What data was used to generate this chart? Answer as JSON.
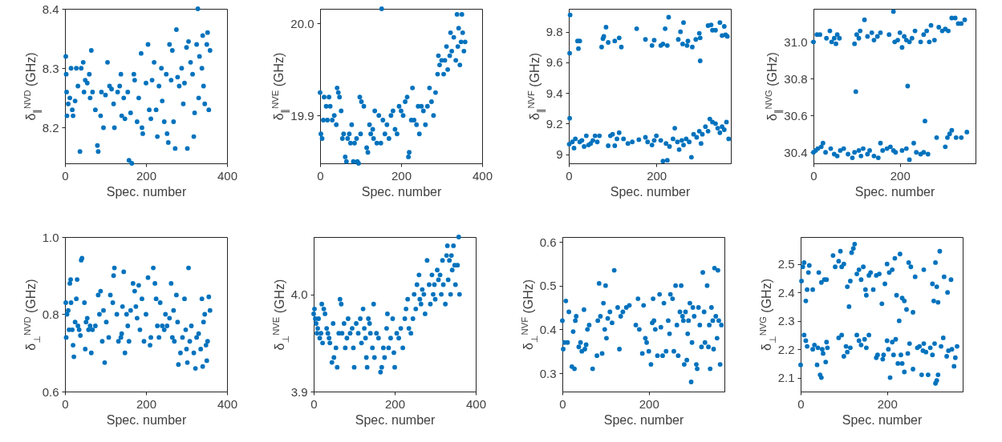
{
  "chart_data": [
    {
      "type": "scatter",
      "xlabel": "Spec. number",
      "ylabel": "δ$_{∥}$$^{NVD}$ (GHz)",
      "color": "#0072bd",
      "marker": "circle",
      "xlim": [
        0,
        400
      ],
      "xticks": [
        0,
        200,
        400
      ],
      "ylim": [
        8.14,
        8.4
      ],
      "yticks": [
        8.2,
        8.3,
        8.4
      ],
      "x": [
        2,
        3,
        4,
        5,
        8,
        12,
        15,
        18,
        20,
        25,
        28,
        32,
        37,
        40,
        45,
        47,
        50,
        55,
        60,
        62,
        65,
        68,
        75,
        80,
        82,
        88,
        90,
        95,
        100,
        105,
        110,
        115,
        120,
        122,
        130,
        135,
        138,
        140,
        145,
        148,
        155,
        158,
        162,
        165,
        170,
        172,
        178,
        182,
        188,
        190,
        192,
        200,
        205,
        208,
        212,
        215,
        220,
        225,
        228,
        232,
        238,
        240,
        245,
        250,
        252,
        255,
        258,
        262,
        265,
        268,
        272,
        275,
        278,
        282,
        288,
        292,
        295,
        300,
        302,
        305,
        310,
        315,
        318,
        320,
        325,
        328,
        330,
        332,
        338,
        340,
        342,
        345,
        350,
        352,
        355,
        358
      ],
      "values": [
        8.32,
        8.29,
        8.26,
        8.22,
        8.24,
        8.25,
        8.3,
        8.23,
        8.22,
        8.245,
        8.3,
        8.27,
        8.16,
        8.3,
        8.31,
        8.26,
        8.28,
        8.275,
        8.29,
        8.25,
        8.33,
        8.26,
        8.23,
        8.17,
        8.16,
        8.22,
        8.26,
        8.2,
        8.255,
        8.31,
        8.27,
        8.265,
        8.24,
        8.2,
        8.26,
        8.27,
        8.29,
        8.22,
        8.25,
        8.215,
        8.26,
        8.145,
        8.225,
        8.14,
        8.29,
        8.28,
        8.21,
        8.25,
        8.325,
        8.2,
        8.19,
        8.275,
        8.34,
        8.23,
        8.215,
        8.28,
        8.31,
        8.23,
        8.185,
        8.27,
        8.3,
        8.245,
        8.21,
        8.29,
        8.19,
        8.175,
        8.34,
        8.28,
        8.33,
        8.21,
        8.165,
        8.365,
        8.285,
        8.27,
        8.3,
        8.24,
        8.275,
        8.335,
        8.165,
        8.345,
        8.31,
        8.29,
        8.185,
        8.225,
        8.34,
        8.4,
        8.25,
        8.32,
        8.3,
        8.355,
        8.27,
        8.24,
        8.34,
        8.36,
        8.23,
        8.33
      ]
    },
    {
      "type": "scatter",
      "xlabel": "Spec. number",
      "ylabel": "δ$_{∥}$$^{NVE}$ (GHz)",
      "color": "#0072bd",
      "marker": "circle",
      "xlim": [
        0,
        400
      ],
      "xticks": [
        0,
        200,
        400
      ],
      "ylim": [
        19.848,
        20.016
      ],
      "yticks": [
        19.9,
        {
          "value": 20,
          "label": "20.0"
        }
      ],
      "x": [
        0,
        2,
        5,
        8,
        10,
        15,
        18,
        22,
        25,
        30,
        35,
        40,
        42,
        45,
        48,
        52,
        55,
        58,
        62,
        65,
        68,
        72,
        75,
        78,
        82,
        85,
        90,
        92,
        95,
        98,
        100,
        102,
        108,
        115,
        118,
        122,
        125,
        130,
        132,
        135,
        140,
        145,
        150,
        152,
        155,
        160,
        165,
        170,
        175,
        180,
        185,
        190,
        195,
        200,
        205,
        210,
        215,
        218,
        220,
        225,
        228,
        232,
        238,
        242,
        245,
        250,
        255,
        260,
        265,
        270,
        275,
        280,
        285,
        290,
        292,
        295,
        300,
        305,
        308,
        312,
        315,
        320,
        322,
        325,
        330,
        335,
        338,
        340,
        342,
        345,
        348,
        350,
        352,
        355,
        358
      ],
      "values": [
        19.925,
        19.88,
        19.875,
        19.895,
        19.92,
        19.91,
        19.895,
        19.92,
        19.91,
        19.895,
        19.9,
        19.89,
        19.93,
        19.925,
        19.92,
        19.905,
        19.875,
        19.88,
        19.855,
        19.85,
        19.875,
        19.88,
        19.87,
        19.89,
        19.85,
        19.87,
        19.875,
        19.85,
        19.848,
        19.92,
        19.88,
        19.915,
        19.91,
        19.865,
        19.86,
        19.89,
        19.88,
        19.885,
        19.875,
        19.905,
        19.87,
        19.9,
        19.87,
        20.016,
        19.895,
        19.88,
        19.89,
        19.875,
        19.9,
        19.905,
        19.885,
        19.88,
        19.91,
        19.905,
        19.9,
        19.915,
        19.92,
        19.855,
        19.86,
        19.895,
        19.93,
        19.895,
        19.89,
        19.91,
        19.88,
        19.91,
        19.905,
        19.89,
        19.91,
        19.93,
        19.915,
        19.9,
        19.925,
        19.945,
        19.965,
        19.955,
        19.96,
        19.945,
        19.96,
        19.975,
        19.95,
        19.965,
        19.99,
        19.97,
        19.985,
        19.96,
        20.01,
        19.975,
        19.995,
        19.955,
        19.98,
        20.01,
        19.99,
        19.97,
        19.98
      ]
    },
    {
      "type": "scatter",
      "xlabel": "Spec. number",
      "ylabel": "δ$_{∥}$$^{NVF}$ (GHz)",
      "color": "#0072bd",
      "marker": "circle",
      "xlim": [
        0,
        370
      ],
      "xticks": [
        0,
        200
      ],
      "ylim": [
        8.94,
        9.95
      ],
      "yticks": [
        9,
        9.2,
        9.4,
        9.6,
        9.8
      ],
      "x": [
        3,
        2,
        20,
        22,
        25,
        75,
        78,
        80,
        85,
        90,
        105,
        115,
        120,
        155,
        175,
        190,
        195,
        210,
        215,
        220,
        225,
        228,
        250,
        255,
        260,
        262,
        270,
        272,
        282,
        290,
        298,
        300,
        300,
        318,
        325,
        328,
        335,
        345,
        350,
        355,
        358,
        362,
        1,
        2,
        8,
        12,
        15,
        25,
        30,
        35,
        40,
        45,
        50,
        55,
        60,
        65,
        70,
        90,
        95,
        100,
        105,
        110,
        115,
        125,
        135,
        145,
        160,
        175,
        180,
        190,
        195,
        200,
        210,
        215,
        222,
        225,
        230,
        238,
        242,
        248,
        252,
        258,
        262,
        268,
        275,
        280,
        285,
        292,
        298,
        302,
        305,
        312,
        318,
        322,
        328,
        335,
        340,
        345,
        350,
        355,
        360,
        365
      ],
      "values": [
        9.91,
        9.66,
        9.74,
        9.69,
        9.74,
        9.7,
        9.755,
        9.77,
        9.83,
        9.73,
        9.74,
        9.76,
        9.7,
        9.82,
        9.75,
        9.71,
        9.745,
        9.71,
        9.72,
        9.82,
        9.71,
        9.895,
        9.75,
        9.8,
        9.72,
        9.86,
        9.71,
        9.74,
        9.7,
        9.75,
        9.79,
        9.61,
        9.76,
        9.84,
        9.845,
        9.81,
        9.81,
        9.86,
        9.775,
        9.835,
        9.78,
        9.77,
        9.065,
        9.235,
        9.08,
        9.04,
        9.1,
        9.08,
        9.09,
        9.05,
        9.12,
        9.06,
        9.07,
        9.09,
        9.12,
        9.08,
        9.12,
        9.055,
        9.12,
        9.13,
        9.055,
        9.1,
        9.14,
        9.1,
        9.07,
        9.08,
        9.095,
        9.11,
        9.08,
        9.06,
        9.09,
        9.12,
        9.09,
        8.955,
        9.07,
        8.96,
        9.05,
        9.1,
        9.17,
        9.08,
        9.03,
        9.09,
        9.06,
        9.1,
        9.08,
        8.98,
        9.13,
        9.11,
        9.15,
        9.07,
        9.13,
        9.18,
        9.15,
        9.23,
        9.21,
        9.2,
        9.17,
        9.14,
        9.18,
        9.16,
        9.21,
        9.1
      ]
    },
    {
      "type": "scatter",
      "xlabel": "Spec. number",
      "ylabel": "δ$_{∥}$$^{NVG}$ (GHz)",
      "color": "#0072bd",
      "marker": "circle",
      "xlim": [
        0,
        375
      ],
      "xticks": [
        0,
        200
      ],
      "ylim": [
        30.34,
        31.18
      ],
      "yticks": [
        30.4,
        30.6,
        30.8,
        {
          "value": 31,
          "label": "31.0"
        }
      ],
      "x": [
        0,
        8,
        15,
        30,
        38,
        42,
        48,
        52,
        55,
        60,
        95,
        100,
        105,
        108,
        118,
        125,
        135,
        140,
        148,
        155,
        175,
        185,
        188,
        195,
        200,
        205,
        210,
        215,
        222,
        228,
        235,
        248,
        255,
        262,
        268,
        272,
        280,
        290,
        298,
        305,
        312,
        320,
        328,
        335,
        342,
        350,
        98,
        218,
        258,
        0,
        5,
        10,
        18,
        22,
        28,
        40,
        48,
        55,
        62,
        70,
        80,
        90,
        95,
        105,
        110,
        115,
        125,
        130,
        140,
        150,
        155,
        160,
        170,
        178,
        185,
        190,
        205,
        215,
        222,
        232,
        238,
        248,
        255,
        265,
        285,
        305,
        310,
        315,
        320,
        330,
        342,
        355
      ],
      "values": [
        31.0,
        31.04,
        31.04,
        31.02,
        31.06,
        31.0,
        31.02,
        30.99,
        31.04,
        31.02,
        30.99,
        31.04,
        31.02,
        31.06,
        31.12,
        31.03,
        31.05,
        31.01,
        31.03,
        31.05,
        31.04,
        31.165,
        31.0,
        31.01,
        31.05,
        30.97,
        31.03,
        31.01,
        31.0,
        31.02,
        31.06,
        31.0,
        31.04,
        31.06,
        31.0,
        31.09,
        31.01,
        31.08,
        31.06,
        31.07,
        31.06,
        31.13,
        31.13,
        31.1,
        31.1,
        31.12,
        30.73,
        30.76,
        30.57,
        30.4,
        30.41,
        30.42,
        30.43,
        30.45,
        30.4,
        30.42,
        30.39,
        30.38,
        30.41,
        30.42,
        30.39,
        30.37,
        30.4,
        30.41,
        30.38,
        30.42,
        30.39,
        30.41,
        30.38,
        30.37,
        30.45,
        30.41,
        30.42,
        30.43,
        30.41,
        30.4,
        30.41,
        30.42,
        30.36,
        30.45,
        30.4,
        30.39,
        30.4,
        30.39,
        30.48,
        30.43,
        30.48,
        30.5,
        30.52,
        30.48,
        30.48,
        30.51
      ]
    },
    {
      "type": "scatter",
      "xlabel": "Spec. number",
      "ylabel": "δ$_{⊥}$$^{NVD}$ (GHz)",
      "color": "#0072bd",
      "marker": "circle",
      "xlim": [
        0,
        400
      ],
      "xticks": [
        0,
        200,
        400
      ],
      "ylim": [
        0.6,
        1.0
      ],
      "yticks": [
        0.6,
        0.8,
        {
          "value": 1,
          "label": "1.0"
        }
      ],
      "x": [
        2,
        3,
        5,
        8,
        10,
        12,
        14,
        15,
        18,
        20,
        22,
        25,
        28,
        30,
        32,
        35,
        38,
        40,
        42,
        48,
        50,
        52,
        55,
        58,
        62,
        65,
        68,
        75,
        82,
        85,
        88,
        92,
        95,
        98,
        102,
        108,
        112,
        118,
        120,
        122,
        128,
        132,
        138,
        140,
        142,
        145,
        148,
        152,
        155,
        158,
        162,
        168,
        172,
        175,
        178,
        182,
        185,
        190,
        195,
        200,
        205,
        210,
        212,
        218,
        222,
        225,
        228,
        232,
        235,
        240,
        245,
        248,
        252,
        258,
        262,
        265,
        268,
        270,
        275,
        278,
        280,
        285,
        290,
        295,
        298,
        300,
        302,
        305,
        308,
        312,
        318,
        322,
        325,
        330,
        335,
        338,
        340,
        342,
        345,
        348,
        350,
        352,
        355,
        358
      ],
      "values": [
        0.83,
        0.74,
        0.8,
        0.81,
        0.76,
        0.88,
        0.89,
        0.83,
        0.76,
        0.72,
        0.69,
        0.78,
        0.84,
        0.89,
        0.77,
        0.76,
        0.745,
        0.94,
        0.945,
        0.83,
        0.71,
        0.78,
        0.79,
        0.76,
        0.77,
        0.7,
        0.76,
        0.77,
        0.85,
        0.8,
        0.86,
        0.73,
        0.81,
        0.675,
        0.78,
        0.74,
        0.85,
        0.83,
        0.9,
        0.92,
        0.8,
        0.73,
        0.74,
        0.75,
        0.82,
        0.91,
        0.7,
        0.8,
        0.77,
        0.73,
        0.81,
        0.88,
        0.86,
        0.82,
        0.79,
        0.875,
        0.76,
        0.84,
        0.73,
        0.8,
        0.895,
        0.72,
        0.74,
        0.92,
        0.88,
        0.84,
        0.77,
        0.74,
        0.83,
        0.77,
        0.76,
        0.8,
        0.77,
        0.79,
        0.88,
        0.74,
        0.81,
        0.73,
        0.85,
        0.78,
        0.67,
        0.7,
        0.74,
        0.84,
        0.76,
        0.71,
        0.675,
        0.92,
        0.73,
        0.77,
        0.7,
        0.66,
        0.74,
        0.75,
        0.71,
        0.84,
        0.665,
        0.78,
        0.8,
        0.72,
        0.68,
        0.73,
        0.845,
        0.81
      ]
    },
    {
      "type": "scatter",
      "xlabel": "Spec. number",
      "ylabel": "δ$_{⊥}$$^{NVE}$ (GHz)",
      "color": "#0072bd",
      "marker": "circle",
      "xlim": [
        0,
        400
      ],
      "xticks": [
        0,
        200,
        400
      ],
      "ylim": [
        3.9,
        4.059
      ],
      "yticks": [
        3.9,
        {
          "value": 4,
          "label": "4.0"
        }
      ],
      "x": [
        0,
        2,
        4,
        6,
        8,
        10,
        12,
        15,
        18,
        20,
        22,
        25,
        28,
        32,
        35,
        38,
        40,
        45,
        48,
        50,
        55,
        58,
        62,
        65,
        68,
        70,
        75,
        78,
        82,
        85,
        90,
        95,
        98,
        100,
        105,
        110,
        115,
        118,
        122,
        125,
        128,
        130,
        132,
        135,
        138,
        140,
        145,
        148,
        150,
        155,
        160,
        165,
        168,
        172,
        175,
        180,
        182,
        185,
        190,
        195,
        198,
        200,
        205,
        210,
        215,
        220,
        225,
        228,
        232,
        235,
        240,
        245,
        248,
        252,
        255,
        260,
        262,
        265,
        268,
        272,
        275,
        280,
        285,
        288,
        292,
        295,
        298,
        300,
        305,
        308,
        312,
        315,
        318,
        320,
        325,
        328,
        330,
        332,
        335,
        338,
        340,
        342,
        345,
        348,
        350,
        355,
        358,
        360
      ],
      "values": [
        3.98,
        3.985,
        3.975,
        3.97,
        3.96,
        3.965,
        3.975,
        3.955,
        3.96,
        3.99,
        3.95,
        3.985,
        3.98,
        3.965,
        3.96,
        3.955,
        3.95,
        3.93,
        3.97,
        3.935,
        3.945,
        3.925,
        3.96,
        3.995,
        3.99,
        3.96,
        3.97,
        3.945,
        3.955,
        3.975,
        3.96,
        3.965,
        3.945,
        3.925,
        3.97,
        3.96,
        3.975,
        3.95,
        3.985,
        3.965,
        3.955,
        3.935,
        3.925,
        3.975,
        3.97,
        3.96,
        3.945,
        3.99,
        3.935,
        3.96,
        3.955,
        3.92,
        3.925,
        3.945,
        3.935,
        3.965,
        3.98,
        3.945,
        3.955,
        3.975,
        3.94,
        3.925,
        3.96,
        3.955,
        3.965,
        3.945,
        3.975,
        3.985,
        3.995,
        3.965,
        3.96,
        3.975,
        4.0,
        3.985,
        4.01,
        4.02,
        3.995,
        3.99,
        4.005,
        4.0,
        3.98,
        4.035,
        4.01,
        3.99,
        4.02,
        4.0,
        4.01,
        3.995,
        4.025,
        4.015,
        4.02,
        4.0,
        4.035,
        4.01,
        3.99,
        4.04,
        4.05,
        4.015,
        4.035,
        4.0,
        4.04,
        4.025,
        4.05,
        4.03,
        4.01,
        4.03,
        4.059,
        4.0
      ]
    },
    {
      "type": "scatter",
      "xlabel": "Spec. number",
      "ylabel": "δ$_{⊥}$$^{NVF}$ (GHz)",
      "color": "#0072bd",
      "marker": "circle",
      "xlim": [
        0,
        375
      ],
      "xticks": [
        0,
        200
      ],
      "ylim": [
        0.258,
        0.611
      ],
      "yticks": [
        0.3,
        0.4,
        0.5,
        0.6
      ],
      "x": [
        0,
        2,
        5,
        8,
        12,
        15,
        22,
        25,
        28,
        30,
        32,
        38,
        42,
        45,
        50,
        52,
        55,
        58,
        62,
        70,
        80,
        82,
        85,
        88,
        92,
        95,
        98,
        100,
        102,
        105,
        110,
        115,
        120,
        128,
        132,
        135,
        140,
        148,
        155,
        170,
        175,
        178,
        185,
        188,
        192,
        195,
        200,
        205,
        208,
        210,
        212,
        215,
        220,
        225,
        228,
        232,
        235,
        240,
        245,
        248,
        250,
        255,
        258,
        262,
        265,
        268,
        272,
        275,
        278,
        280,
        282,
        285,
        288,
        290,
        292,
        295,
        298,
        300,
        302,
        305,
        310,
        312,
        315,
        318,
        322,
        325,
        328,
        330,
        335,
        338,
        340,
        342,
        345,
        348,
        350,
        352,
        355,
        358,
        360,
        362,
        365,
        368
      ],
      "values": [
        0.42,
        0.355,
        0.37,
        0.465,
        0.37,
        0.44,
        0.315,
        0.395,
        0.31,
        0.42,
        0.43,
        0.36,
        0.37,
        0.35,
        0.445,
        0.355,
        0.365,
        0.4,
        0.41,
        0.31,
        0.34,
        0.42,
        0.505,
        0.43,
        0.345,
        0.46,
        0.4,
        0.5,
        0.38,
        0.425,
        0.44,
        0.415,
        0.535,
        0.45,
        0.355,
        0.43,
        0.44,
        0.45,
        0.455,
        0.41,
        0.47,
        0.4,
        0.345,
        0.455,
        0.38,
        0.37,
        0.35,
        0.32,
        0.415,
        0.47,
        0.42,
        0.4,
        0.34,
        0.48,
        0.405,
        0.34,
        0.46,
        0.35,
        0.42,
        0.39,
        0.48,
        0.47,
        0.35,
        0.5,
        0.41,
        0.34,
        0.44,
        0.5,
        0.43,
        0.42,
        0.32,
        0.44,
        0.33,
        0.39,
        0.42,
        0.46,
        0.28,
        0.37,
        0.45,
        0.43,
        0.32,
        0.31,
        0.45,
        0.41,
        0.36,
        0.53,
        0.44,
        0.37,
        0.5,
        0.36,
        0.41,
        0.31,
        0.45,
        0.42,
        0.355,
        0.54,
        0.43,
        0.38,
        0.535,
        0.42,
        0.32,
        0.41
      ]
    },
    {
      "type": "scatter",
      "xlabel": "Spec. number",
      "ylabel": "δ$_{⊥}$$^{NVG}$ (GHz)",
      "color": "#0072bd",
      "marker": "circle",
      "xlim": [
        0,
        375
      ],
      "xticks": [
        0,
        200
      ],
      "ylim": [
        2.051,
        2.595
      ],
      "yticks": [
        2.1,
        2.2,
        2.3,
        2.4,
        2.5
      ],
      "x": [
        2,
        5,
        8,
        12,
        15,
        18,
        20,
        28,
        42,
        48,
        55,
        60,
        75,
        80,
        88,
        92,
        95,
        100,
        108,
        112,
        115,
        118,
        122,
        125,
        130,
        135,
        140,
        145,
        150,
        152,
        158,
        162,
        168,
        175,
        182,
        188,
        195,
        200,
        205,
        212,
        218,
        222,
        228,
        230,
        235,
        240,
        245,
        250,
        255,
        260,
        265,
        285,
        305,
        308,
        312,
        315,
        318,
        322,
        332,
        340,
        348,
        0,
        8,
        12,
        15,
        28,
        32,
        38,
        40,
        45,
        48,
        50,
        52,
        58,
        60,
        62,
        88,
        95,
        100,
        105,
        108,
        115,
        130,
        135,
        140,
        148,
        152,
        158,
        175,
        178,
        190,
        192,
        200,
        203,
        207,
        212,
        215,
        220,
        225,
        232,
        235,
        240,
        248,
        252,
        260,
        270,
        275,
        280,
        283,
        285,
        290,
        295,
        300,
        305,
        310,
        312,
        315,
        318,
        325,
        330,
        338,
        342,
        350,
        355,
        358,
        362
      ],
      "values": [
        2.44,
        2.49,
        2.505,
        2.37,
        2.41,
        2.47,
        2.495,
        2.41,
        2.47,
        2.435,
        2.445,
        2.445,
        2.53,
        2.49,
        2.51,
        2.545,
        2.49,
        2.5,
        2.42,
        2.35,
        2.44,
        2.54,
        2.555,
        2.57,
        2.465,
        2.48,
        2.445,
        2.49,
        2.41,
        2.39,
        2.46,
        2.47,
        2.41,
        2.46,
        2.465,
        2.36,
        2.43,
        2.5,
        2.47,
        2.48,
        2.52,
        2.39,
        2.3,
        2.535,
        2.38,
        2.37,
        2.34,
        2.505,
        2.49,
        2.33,
        2.455,
        2.48,
        2.43,
        2.37,
        2.505,
        2.42,
        2.365,
        2.545,
        2.455,
        2.4,
        2.445,
        2.145,
        2.25,
        2.23,
        2.21,
        2.2,
        2.215,
        2.145,
        2.205,
        2.11,
        2.1,
        2.2,
        2.185,
        2.155,
        2.225,
        2.205,
        2.24,
        2.25,
        2.175,
        2.21,
        2.19,
        2.205,
        2.25,
        2.23,
        2.215,
        2.235,
        2.205,
        2.25,
        2.17,
        2.18,
        2.165,
        2.18,
        2.23,
        2.2,
        2.1,
        2.225,
        2.18,
        2.235,
        2.15,
        2.18,
        2.15,
        2.12,
        2.185,
        2.22,
        2.13,
        2.205,
        2.21,
        2.11,
        2.195,
        2.22,
        2.19,
        2.11,
        2.205,
        2.18,
        2.22,
        2.08,
        2.09,
        2.11,
        2.21,
        2.24,
        2.175,
        2.195,
        2.2,
        2.14,
        2.17,
        2.21
      ]
    }
  ]
}
